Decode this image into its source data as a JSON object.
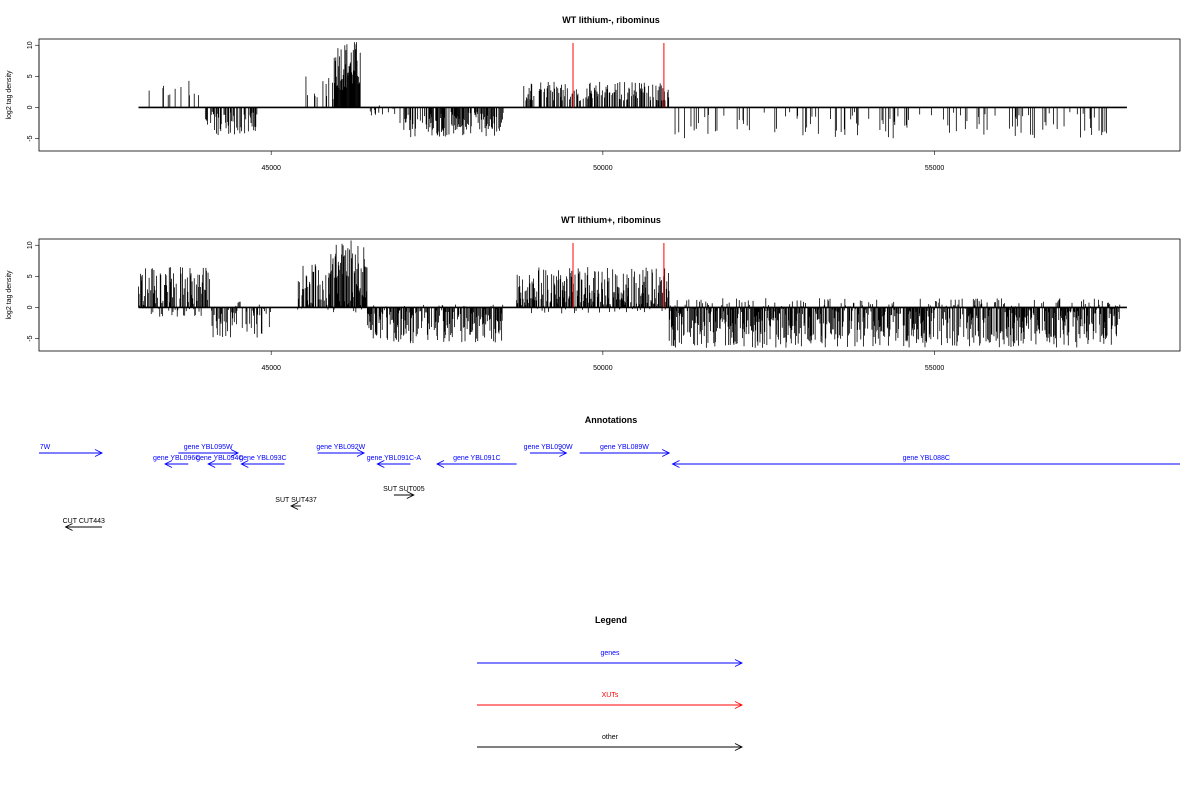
{
  "colors": {
    "gene": "#0000ff",
    "xut": "#ff0000",
    "other": "#000000",
    "signal": "#000000",
    "marker": "#ff0000"
  },
  "chart_data": [
    {
      "type": "bar",
      "title": "WT lithium-, ribominus",
      "ylabel": "log2 tag density",
      "xlim": [
        41500,
        58700
      ],
      "ylim": [
        -7,
        11
      ],
      "x_ticks": [
        45000,
        50000,
        55000
      ],
      "y_ticks": [
        -5,
        0,
        5,
        10
      ],
      "data_range": [
        43000,
        57900
      ],
      "markers_x": [
        49550,
        50920
      ],
      "signal_profile": [
        {
          "from": 43000,
          "to": 44000,
          "ymax": 4.5,
          "ymin": 0,
          "density": 0.12
        },
        {
          "from": 44000,
          "to": 44800,
          "ymax": 0,
          "ymin": -4.5,
          "density": 0.5
        },
        {
          "from": 45500,
          "to": 45950,
          "ymax": 5,
          "ymin": 0,
          "density": 0.3
        },
        {
          "from": 45950,
          "to": 46350,
          "ymax": 10.8,
          "ymin": 0,
          "density": 1.0
        },
        {
          "from": 46350,
          "to": 47000,
          "ymax": 1,
          "ymin": -2.5,
          "density": 0.15
        },
        {
          "from": 47000,
          "to": 48500,
          "ymax": 0,
          "ymin": -4.8,
          "density": 0.6
        },
        {
          "from": 48800,
          "to": 51000,
          "ymax": 4.2,
          "ymin": 0,
          "density": 0.5
        },
        {
          "from": 51000,
          "to": 57800,
          "ymax": 0,
          "ymin": -5,
          "density": 0.12
        }
      ]
    },
    {
      "type": "bar",
      "title": "WT lithium+, ribominus",
      "ylabel": "log2 tag density",
      "xlim": [
        41500,
        58700
      ],
      "ylim": [
        -7,
        11
      ],
      "x_ticks": [
        45000,
        50000,
        55000
      ],
      "y_ticks": [
        -5,
        0,
        5,
        10
      ],
      "data_range": [
        43000,
        57900
      ],
      "markers_x": [
        49550,
        50920
      ],
      "signal_profile": [
        {
          "from": 43000,
          "to": 44100,
          "ymax": 6.5,
          "ymin": -1.5,
          "density": 0.8
        },
        {
          "from": 44100,
          "to": 45000,
          "ymax": 1,
          "ymin": -5,
          "density": 0.6
        },
        {
          "from": 45400,
          "to": 45900,
          "ymax": 7,
          "ymin": -1,
          "density": 0.6
        },
        {
          "from": 45900,
          "to": 46450,
          "ymax": 10.8,
          "ymin": -1,
          "density": 1.0
        },
        {
          "from": 46450,
          "to": 48500,
          "ymax": 0.5,
          "ymin": -6,
          "density": 0.7
        },
        {
          "from": 48700,
          "to": 51000,
          "ymax": 6.5,
          "ymin": -1,
          "density": 0.8
        },
        {
          "from": 51000,
          "to": 57800,
          "ymax": 1.5,
          "ymin": -6.5,
          "density": 0.85
        }
      ]
    }
  ],
  "annotations": {
    "title": "Annotations",
    "items": [
      {
        "label": "7W",
        "type": "gene",
        "strand": "+",
        "start": 41500,
        "end": 42450,
        "row": 0
      },
      {
        "label": "gene YBL095W",
        "type": "gene",
        "strand": "+",
        "start": 43600,
        "end": 44500,
        "row": 0
      },
      {
        "label": "gene YBL096C",
        "type": "gene",
        "strand": "-",
        "start": 43400,
        "end": 43750,
        "row": 1
      },
      {
        "label": "gene YBL094C",
        "type": "gene",
        "strand": "-",
        "start": 44050,
        "end": 44400,
        "row": 1
      },
      {
        "label": "gene YBL093C",
        "type": "gene",
        "strand": "-",
        "start": 44550,
        "end": 45200,
        "row": 1
      },
      {
        "label": "gene YBL092W",
        "type": "gene",
        "strand": "+",
        "start": 45700,
        "end": 46400,
        "row": 0
      },
      {
        "label": "gene YBL091C-A",
        "type": "gene",
        "strand": "-",
        "start": 46600,
        "end": 47100,
        "row": 1
      },
      {
        "label": "gene YBL091C",
        "type": "gene",
        "strand": "-",
        "start": 47500,
        "end": 48700,
        "row": 1
      },
      {
        "label": "gene YBL090W",
        "type": "gene",
        "strand": "+",
        "start": 48900,
        "end": 49450,
        "row": 0
      },
      {
        "label": "gene YBL089W",
        "type": "gene",
        "strand": "+",
        "start": 49650,
        "end": 51000,
        "row": 0
      },
      {
        "label": "gene YBL088C",
        "type": "gene",
        "strand": "-",
        "start": 51050,
        "end": 58700,
        "row": 1
      },
      {
        "label": "SUT SUT437",
        "type": "other",
        "strand": "-",
        "start": 45300,
        "end": 45450,
        "row": 3
      },
      {
        "label": "SUT SUT005",
        "type": "other",
        "strand": "+",
        "start": 46850,
        "end": 47150,
        "row": 2
      },
      {
        "label": "CUT CUT443",
        "type": "other",
        "strand": "-",
        "start": 41900,
        "end": 42450,
        "row": 4
      }
    ]
  },
  "legend": {
    "title": "Legend",
    "items": [
      {
        "label": "genes",
        "type": "gene"
      },
      {
        "label": "XUTs",
        "type": "xut"
      },
      {
        "label": "other",
        "type": "other"
      }
    ]
  }
}
